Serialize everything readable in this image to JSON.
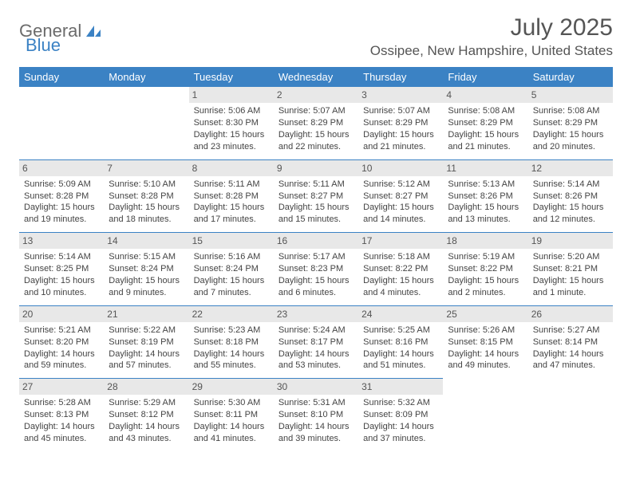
{
  "logo": {
    "text1": "General",
    "text2": "Blue"
  },
  "title": "July 2025",
  "location": "Ossipee, New Hampshire, United States",
  "day_headers": [
    "Sunday",
    "Monday",
    "Tuesday",
    "Wednesday",
    "Thursday",
    "Friday",
    "Saturday"
  ],
  "colors": {
    "header_bg": "#3b82c4",
    "header_text": "#ffffff",
    "daynum_bg": "#e8e8e8",
    "text": "#444444",
    "logo_gray": "#6b6b6b",
    "logo_blue": "#3b82c4"
  },
  "weeks": [
    [
      {
        "empty": true
      },
      {
        "empty": true
      },
      {
        "n": "1",
        "sr": "Sunrise: 5:06 AM",
        "ss": "Sunset: 8:30 PM",
        "d1": "Daylight: 15 hours",
        "d2": "and 23 minutes."
      },
      {
        "n": "2",
        "sr": "Sunrise: 5:07 AM",
        "ss": "Sunset: 8:29 PM",
        "d1": "Daylight: 15 hours",
        "d2": "and 22 minutes."
      },
      {
        "n": "3",
        "sr": "Sunrise: 5:07 AM",
        "ss": "Sunset: 8:29 PM",
        "d1": "Daylight: 15 hours",
        "d2": "and 21 minutes."
      },
      {
        "n": "4",
        "sr": "Sunrise: 5:08 AM",
        "ss": "Sunset: 8:29 PM",
        "d1": "Daylight: 15 hours",
        "d2": "and 21 minutes."
      },
      {
        "n": "5",
        "sr": "Sunrise: 5:08 AM",
        "ss": "Sunset: 8:29 PM",
        "d1": "Daylight: 15 hours",
        "d2": "and 20 minutes."
      }
    ],
    [
      {
        "n": "6",
        "sr": "Sunrise: 5:09 AM",
        "ss": "Sunset: 8:28 PM",
        "d1": "Daylight: 15 hours",
        "d2": "and 19 minutes."
      },
      {
        "n": "7",
        "sr": "Sunrise: 5:10 AM",
        "ss": "Sunset: 8:28 PM",
        "d1": "Daylight: 15 hours",
        "d2": "and 18 minutes."
      },
      {
        "n": "8",
        "sr": "Sunrise: 5:11 AM",
        "ss": "Sunset: 8:28 PM",
        "d1": "Daylight: 15 hours",
        "d2": "and 17 minutes."
      },
      {
        "n": "9",
        "sr": "Sunrise: 5:11 AM",
        "ss": "Sunset: 8:27 PM",
        "d1": "Daylight: 15 hours",
        "d2": "and 15 minutes."
      },
      {
        "n": "10",
        "sr": "Sunrise: 5:12 AM",
        "ss": "Sunset: 8:27 PM",
        "d1": "Daylight: 15 hours",
        "d2": "and 14 minutes."
      },
      {
        "n": "11",
        "sr": "Sunrise: 5:13 AM",
        "ss": "Sunset: 8:26 PM",
        "d1": "Daylight: 15 hours",
        "d2": "and 13 minutes."
      },
      {
        "n": "12",
        "sr": "Sunrise: 5:14 AM",
        "ss": "Sunset: 8:26 PM",
        "d1": "Daylight: 15 hours",
        "d2": "and 12 minutes."
      }
    ],
    [
      {
        "n": "13",
        "sr": "Sunrise: 5:14 AM",
        "ss": "Sunset: 8:25 PM",
        "d1": "Daylight: 15 hours",
        "d2": "and 10 minutes."
      },
      {
        "n": "14",
        "sr": "Sunrise: 5:15 AM",
        "ss": "Sunset: 8:24 PM",
        "d1": "Daylight: 15 hours",
        "d2": "and 9 minutes."
      },
      {
        "n": "15",
        "sr": "Sunrise: 5:16 AM",
        "ss": "Sunset: 8:24 PM",
        "d1": "Daylight: 15 hours",
        "d2": "and 7 minutes."
      },
      {
        "n": "16",
        "sr": "Sunrise: 5:17 AM",
        "ss": "Sunset: 8:23 PM",
        "d1": "Daylight: 15 hours",
        "d2": "and 6 minutes."
      },
      {
        "n": "17",
        "sr": "Sunrise: 5:18 AM",
        "ss": "Sunset: 8:22 PM",
        "d1": "Daylight: 15 hours",
        "d2": "and 4 minutes."
      },
      {
        "n": "18",
        "sr": "Sunrise: 5:19 AM",
        "ss": "Sunset: 8:22 PM",
        "d1": "Daylight: 15 hours",
        "d2": "and 2 minutes."
      },
      {
        "n": "19",
        "sr": "Sunrise: 5:20 AM",
        "ss": "Sunset: 8:21 PM",
        "d1": "Daylight: 15 hours",
        "d2": "and 1 minute."
      }
    ],
    [
      {
        "n": "20",
        "sr": "Sunrise: 5:21 AM",
        "ss": "Sunset: 8:20 PM",
        "d1": "Daylight: 14 hours",
        "d2": "and 59 minutes."
      },
      {
        "n": "21",
        "sr": "Sunrise: 5:22 AM",
        "ss": "Sunset: 8:19 PM",
        "d1": "Daylight: 14 hours",
        "d2": "and 57 minutes."
      },
      {
        "n": "22",
        "sr": "Sunrise: 5:23 AM",
        "ss": "Sunset: 8:18 PM",
        "d1": "Daylight: 14 hours",
        "d2": "and 55 minutes."
      },
      {
        "n": "23",
        "sr": "Sunrise: 5:24 AM",
        "ss": "Sunset: 8:17 PM",
        "d1": "Daylight: 14 hours",
        "d2": "and 53 minutes."
      },
      {
        "n": "24",
        "sr": "Sunrise: 5:25 AM",
        "ss": "Sunset: 8:16 PM",
        "d1": "Daylight: 14 hours",
        "d2": "and 51 minutes."
      },
      {
        "n": "25",
        "sr": "Sunrise: 5:26 AM",
        "ss": "Sunset: 8:15 PM",
        "d1": "Daylight: 14 hours",
        "d2": "and 49 minutes."
      },
      {
        "n": "26",
        "sr": "Sunrise: 5:27 AM",
        "ss": "Sunset: 8:14 PM",
        "d1": "Daylight: 14 hours",
        "d2": "and 47 minutes."
      }
    ],
    [
      {
        "n": "27",
        "sr": "Sunrise: 5:28 AM",
        "ss": "Sunset: 8:13 PM",
        "d1": "Daylight: 14 hours",
        "d2": "and 45 minutes."
      },
      {
        "n": "28",
        "sr": "Sunrise: 5:29 AM",
        "ss": "Sunset: 8:12 PM",
        "d1": "Daylight: 14 hours",
        "d2": "and 43 minutes."
      },
      {
        "n": "29",
        "sr": "Sunrise: 5:30 AM",
        "ss": "Sunset: 8:11 PM",
        "d1": "Daylight: 14 hours",
        "d2": "and 41 minutes."
      },
      {
        "n": "30",
        "sr": "Sunrise: 5:31 AM",
        "ss": "Sunset: 8:10 PM",
        "d1": "Daylight: 14 hours",
        "d2": "and 39 minutes."
      },
      {
        "n": "31",
        "sr": "Sunrise: 5:32 AM",
        "ss": "Sunset: 8:09 PM",
        "d1": "Daylight: 14 hours",
        "d2": "and 37 minutes."
      },
      {
        "empty": true
      },
      {
        "empty": true
      }
    ]
  ]
}
